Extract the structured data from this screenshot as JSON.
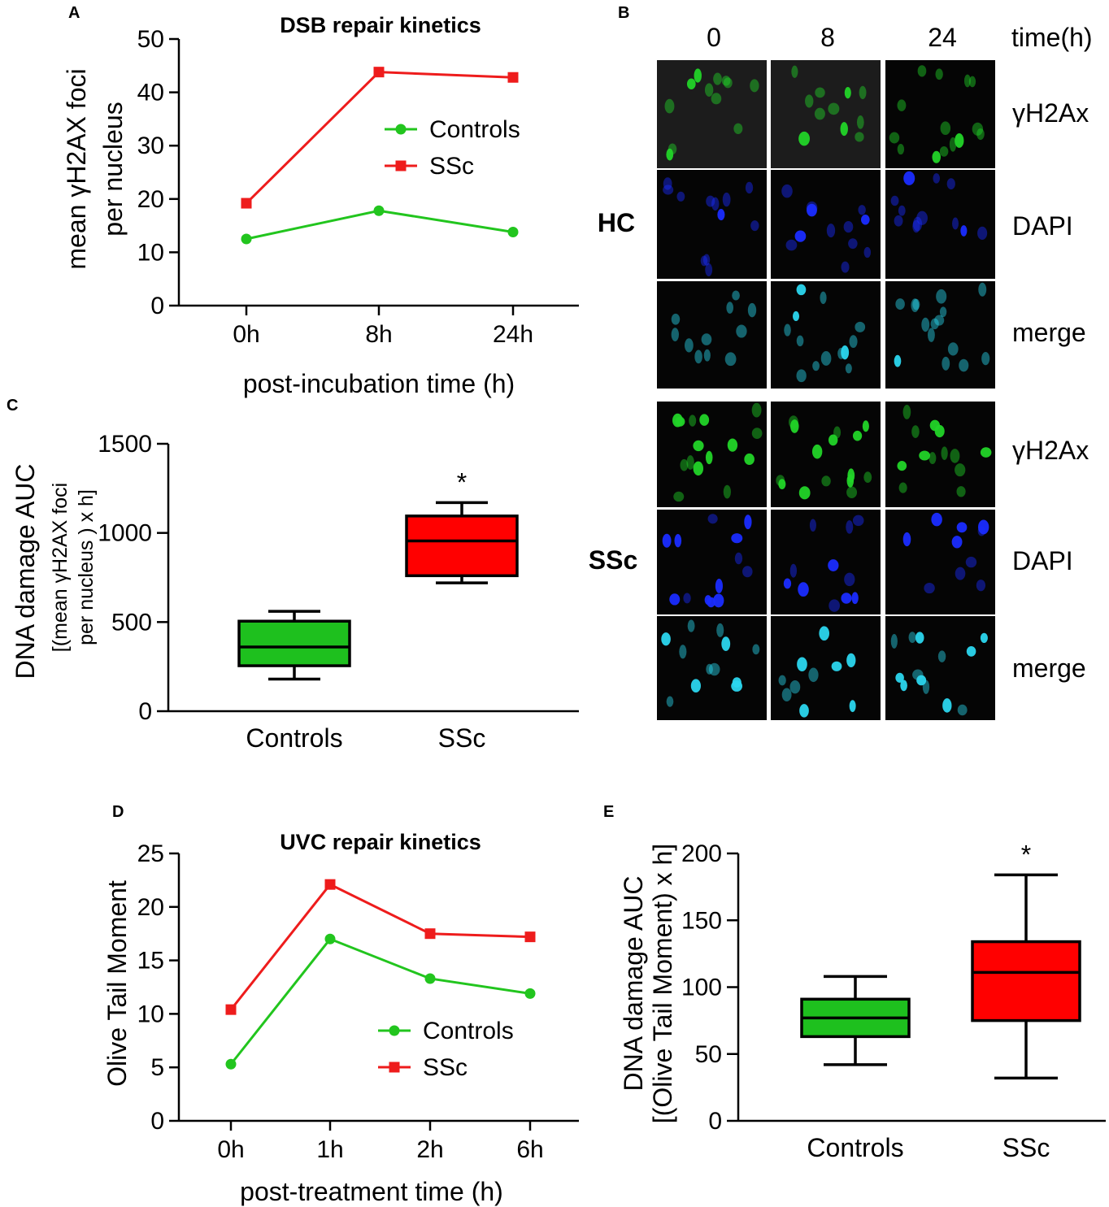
{
  "panels": {
    "a": "A",
    "b": "B",
    "c": "C",
    "d": "D",
    "e": "E"
  },
  "chart_data": [
    {
      "id": "A",
      "type": "line",
      "title": "DSB repair kinetics",
      "xlabel": "post-incubation time (h)",
      "ylabel": [
        "mean γH2AX foci",
        "per nucleus"
      ],
      "categories": [
        "0h",
        "8h",
        "24h"
      ],
      "ylim": [
        0,
        50
      ],
      "yticks": [
        0,
        10,
        20,
        30,
        40,
        50
      ],
      "legend_position": "top-right",
      "series": [
        {
          "name": "Controls",
          "color": "#22c51e",
          "marker": "circle",
          "values": [
            12.5,
            17.8,
            13.8
          ]
        },
        {
          "name": "SSc",
          "color": "#ee1c1c",
          "marker": "square",
          "values": [
            19.2,
            43.8,
            42.8
          ]
        }
      ]
    },
    {
      "id": "C",
      "type": "box",
      "title": "",
      "xlabel": "",
      "ylabel": [
        "DNA damage AUC",
        "[(mean γH2AX foci",
        "per nucleus ) x h]"
      ],
      "categories": [
        "Controls",
        "SSc"
      ],
      "ylim": [
        0,
        1500
      ],
      "yticks": [
        0,
        500,
        1000,
        1500
      ],
      "significance": [
        "",
        "*"
      ],
      "boxes": [
        {
          "name": "Controls",
          "color": "#1ec01e",
          "min": 180,
          "q1": 255,
          "median": 360,
          "q3": 505,
          "max": 560
        },
        {
          "name": "SSc",
          "color": "#ff0000",
          "min": 720,
          "q1": 760,
          "median": 955,
          "q3": 1095,
          "max": 1170
        }
      ]
    },
    {
      "id": "D",
      "type": "line",
      "title": "UVC repair kinetics",
      "xlabel": "post-treatment time (h)",
      "ylabel": [
        "Olive Tail Moment"
      ],
      "categories": [
        "0h",
        "1h",
        "2h",
        "6h"
      ],
      "ylim": [
        0,
        25
      ],
      "yticks": [
        0,
        5,
        10,
        15,
        20,
        25
      ],
      "legend_position": "bottom-right",
      "series": [
        {
          "name": "Controls",
          "color": "#22c51e",
          "marker": "circle",
          "values": [
            5.3,
            17.0,
            13.3,
            11.9
          ]
        },
        {
          "name": "SSc",
          "color": "#ee1c1c",
          "marker": "square",
          "values": [
            10.4,
            22.1,
            17.5,
            17.2
          ]
        }
      ]
    },
    {
      "id": "E",
      "type": "box",
      "title": "",
      "xlabel": "",
      "ylabel": [
        "DNA damage AUC",
        "[(Olive Tail Moment) x h]"
      ],
      "categories": [
        "Controls",
        "SSc"
      ],
      "ylim": [
        0,
        200
      ],
      "yticks": [
        0,
        50,
        100,
        150,
        200
      ],
      "significance": [
        "",
        "*"
      ],
      "boxes": [
        {
          "name": "Controls",
          "color": "#1ec01e",
          "min": 42,
          "q1": 63,
          "median": 77,
          "q3": 91,
          "max": 108
        },
        {
          "name": "SSc",
          "color": "#ff0000",
          "min": 32,
          "q1": 75,
          "median": 111,
          "q3": 134,
          "max": 184
        }
      ]
    }
  ],
  "micrographs": {
    "timepoints": [
      "0",
      "8",
      "24"
    ],
    "time_label": "time(h)",
    "groups": [
      {
        "name": "HC",
        "channels": [
          "γH2Ax",
          "DAPI",
          "merge"
        ]
      },
      {
        "name": "SSc",
        "channels": [
          "γH2Ax",
          "DAPI",
          "merge"
        ]
      }
    ],
    "channel_colors": {
      "γH2Ax": "#22d428",
      "DAPI": "#1a2cff",
      "merge": "#2bd6ee"
    }
  }
}
